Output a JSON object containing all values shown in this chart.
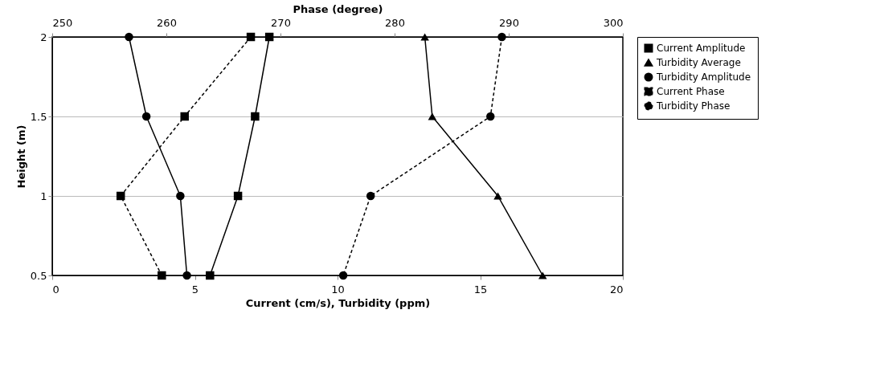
{
  "chart_data": {
    "type": "line",
    "xlabel": "Current (cm/s), Turbidity (ppm)",
    "x2label": "Phase (degree)",
    "ylabel": "Height (m)",
    "xlim": [
      0,
      20
    ],
    "xticks": [
      0,
      5,
      10,
      15,
      20
    ],
    "x2lim": [
      250,
      300
    ],
    "x2ticks": [
      250,
      260,
      270,
      280,
      290,
      300
    ],
    "ylim": [
      0.5,
      2
    ],
    "yticks": [
      0.5,
      1,
      1.5,
      2
    ],
    "grid": "y",
    "legend": "right",
    "series": [
      {
        "name": "Current Amplitude",
        "color": "#000000",
        "marker": "square",
        "line_style": "solid",
        "x": [
          7.61,
          7.11,
          6.51,
          5.53
        ],
        "values": [
          2,
          1.5,
          1,
          0.5
        ]
      },
      {
        "name": "Turbidity Average",
        "color": "#000000",
        "marker": "triangle",
        "line_style": "solid",
        "x": [
          13.06,
          13.32,
          15.62,
          17.19
        ],
        "values": [
          2,
          1.5,
          1,
          0.5
        ]
      },
      {
        "name": "Turbidity Amplitude",
        "color": "#000000",
        "marker": "circle",
        "line_style": "solid",
        "x": [
          2.69,
          3.3,
          4.49,
          4.72
        ],
        "values": [
          2,
          1.5,
          1,
          0.5
        ]
      },
      {
        "name": "Current Phase",
        "color": "#000000",
        "marker": "square",
        "line_style": "dashed",
        "axis": "x2",
        "x": [
          267.4,
          261.6,
          256.0,
          259.6
        ],
        "values": [
          2,
          1.5,
          1,
          0.5
        ]
      },
      {
        "name": "Turbidity Phase",
        "color": "#000000",
        "marker": "circle",
        "line_style": "dashed",
        "axis": "x2",
        "x": [
          289.4,
          288.4,
          277.9,
          275.5
        ],
        "values": [
          2,
          1.5,
          1,
          0.5
        ]
      }
    ]
  }
}
